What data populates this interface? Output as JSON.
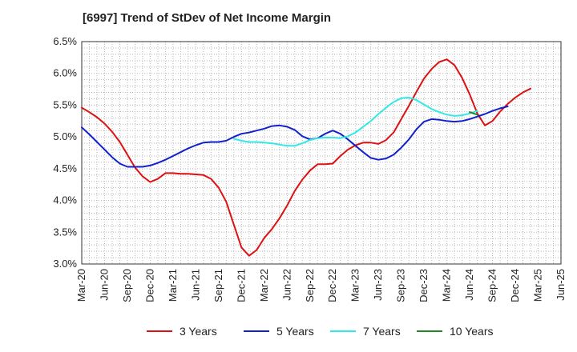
{
  "chart_data": {
    "type": "line",
    "title": "[6997]  Trend of StDev of Net Income Margin",
    "xlabel": "",
    "ylabel": "",
    "ylim": [
      3.0,
      6.5
    ],
    "y_ticks": [
      "3.0%",
      "3.5%",
      "4.0%",
      "4.5%",
      "5.0%",
      "5.5%",
      "6.0%",
      "6.5%"
    ],
    "x_ticks": [
      "Mar-20",
      "Jun-20",
      "Sep-20",
      "Dec-20",
      "Mar-21",
      "Jun-21",
      "Sep-21",
      "Dec-21",
      "Mar-22",
      "Jun-22",
      "Sep-22",
      "Dec-22",
      "Mar-23",
      "Jun-23",
      "Sep-23",
      "Dec-23",
      "Mar-24",
      "Jun-24",
      "Sep-24",
      "Dec-24",
      "Mar-25",
      "Jun-25"
    ],
    "grid": true,
    "legend_position": "bottom",
    "colors": {
      "3 Years": "#dd1111",
      "5 Years": "#1122cc",
      "7 Years": "#33e8e8",
      "10 Years": "#228822"
    },
    "series": [
      {
        "name": "3 Years",
        "points": [
          [
            0,
            5.46
          ],
          [
            1,
            5.39
          ],
          [
            2,
            5.31
          ],
          [
            3,
            5.21
          ],
          [
            4,
            5.08
          ],
          [
            5,
            4.92
          ],
          [
            6,
            4.72
          ],
          [
            7,
            4.52
          ],
          [
            8,
            4.38
          ],
          [
            9,
            4.29
          ],
          [
            10,
            4.34
          ],
          [
            11,
            4.43
          ],
          [
            12,
            4.43
          ],
          [
            13,
            4.42
          ],
          [
            14,
            4.42
          ],
          [
            15,
            4.41
          ],
          [
            16,
            4.4
          ],
          [
            17,
            4.34
          ],
          [
            18,
            4.2
          ],
          [
            19,
            3.98
          ],
          [
            20,
            3.62
          ],
          [
            21,
            3.26
          ],
          [
            22,
            3.13
          ],
          [
            23,
            3.22
          ],
          [
            24,
            3.41
          ],
          [
            25,
            3.55
          ],
          [
            26,
            3.72
          ],
          [
            27,
            3.92
          ],
          [
            28,
            4.15
          ],
          [
            29,
            4.33
          ],
          [
            30,
            4.47
          ],
          [
            31,
            4.57
          ],
          [
            32,
            4.57
          ],
          [
            33,
            4.58
          ],
          [
            34,
            4.7
          ],
          [
            35,
            4.8
          ],
          [
            36,
            4.87
          ],
          [
            37,
            4.91
          ],
          [
            38,
            4.91
          ],
          [
            39,
            4.89
          ],
          [
            40,
            4.95
          ],
          [
            41,
            5.07
          ],
          [
            42,
            5.28
          ],
          [
            43,
            5.49
          ],
          [
            44,
            5.71
          ],
          [
            45,
            5.92
          ],
          [
            46,
            6.07
          ],
          [
            47,
            6.18
          ],
          [
            48,
            6.22
          ],
          [
            49,
            6.13
          ],
          [
            50,
            5.93
          ],
          [
            51,
            5.67
          ],
          [
            52,
            5.37
          ],
          [
            53,
            5.18
          ],
          [
            54,
            5.25
          ],
          [
            55,
            5.4
          ],
          [
            56,
            5.52
          ],
          [
            57,
            5.62
          ],
          [
            58,
            5.7
          ],
          [
            59,
            5.76
          ]
        ]
      },
      {
        "name": "5 Years",
        "points": [
          [
            0,
            5.15
          ],
          [
            1,
            5.04
          ],
          [
            2,
            4.92
          ],
          [
            3,
            4.8
          ],
          [
            4,
            4.68
          ],
          [
            5,
            4.58
          ],
          [
            6,
            4.53
          ],
          [
            7,
            4.53
          ],
          [
            8,
            4.53
          ],
          [
            9,
            4.55
          ],
          [
            10,
            4.59
          ],
          [
            11,
            4.64
          ],
          [
            12,
            4.7
          ],
          [
            13,
            4.76
          ],
          [
            14,
            4.82
          ],
          [
            15,
            4.87
          ],
          [
            16,
            4.91
          ],
          [
            17,
            4.92
          ],
          [
            18,
            4.92
          ],
          [
            19,
            4.94
          ],
          [
            20,
            5.0
          ],
          [
            21,
            5.05
          ],
          [
            22,
            5.07
          ],
          [
            23,
            5.1
          ],
          [
            24,
            5.13
          ],
          [
            25,
            5.17
          ],
          [
            26,
            5.18
          ],
          [
            27,
            5.16
          ],
          [
            28,
            5.11
          ],
          [
            29,
            5.01
          ],
          [
            30,
            4.96
          ],
          [
            31,
            4.98
          ],
          [
            32,
            5.05
          ],
          [
            33,
            5.1
          ],
          [
            34,
            5.05
          ],
          [
            35,
            4.96
          ],
          [
            36,
            4.86
          ],
          [
            37,
            4.76
          ],
          [
            38,
            4.67
          ],
          [
            39,
            4.64
          ],
          [
            40,
            4.66
          ],
          [
            41,
            4.72
          ],
          [
            42,
            4.83
          ],
          [
            43,
            4.96
          ],
          [
            44,
            5.12
          ],
          [
            45,
            5.24
          ],
          [
            46,
            5.28
          ],
          [
            47,
            5.27
          ],
          [
            48,
            5.25
          ],
          [
            49,
            5.24
          ],
          [
            50,
            5.25
          ],
          [
            51,
            5.28
          ],
          [
            52,
            5.32
          ],
          [
            53,
            5.36
          ],
          [
            54,
            5.41
          ],
          [
            55,
            5.45
          ],
          [
            56,
            5.48
          ]
        ]
      },
      {
        "name": "7 Years",
        "points": [
          [
            20,
            4.97
          ],
          [
            21,
            4.94
          ],
          [
            22,
            4.92
          ],
          [
            23,
            4.92
          ],
          [
            24,
            4.91
          ],
          [
            25,
            4.9
          ],
          [
            26,
            4.88
          ],
          [
            27,
            4.86
          ],
          [
            28,
            4.86
          ],
          [
            29,
            4.9
          ],
          [
            30,
            4.95
          ],
          [
            31,
            4.98
          ],
          [
            32,
            4.99
          ],
          [
            33,
            4.99
          ],
          [
            34,
            4.98
          ],
          [
            35,
            5.01
          ],
          [
            36,
            5.07
          ],
          [
            37,
            5.16
          ],
          [
            38,
            5.25
          ],
          [
            39,
            5.36
          ],
          [
            40,
            5.46
          ],
          [
            41,
            5.55
          ],
          [
            42,
            5.61
          ],
          [
            43,
            5.62
          ],
          [
            44,
            5.58
          ],
          [
            45,
            5.51
          ],
          [
            46,
            5.44
          ],
          [
            47,
            5.39
          ],
          [
            48,
            5.35
          ],
          [
            49,
            5.33
          ],
          [
            50,
            5.34
          ],
          [
            51,
            5.37
          ],
          [
            52,
            5.41
          ]
        ]
      },
      {
        "name": "10 Years",
        "points": [
          [
            51,
            5.39
          ],
          [
            52,
            5.35
          ]
        ]
      }
    ]
  }
}
